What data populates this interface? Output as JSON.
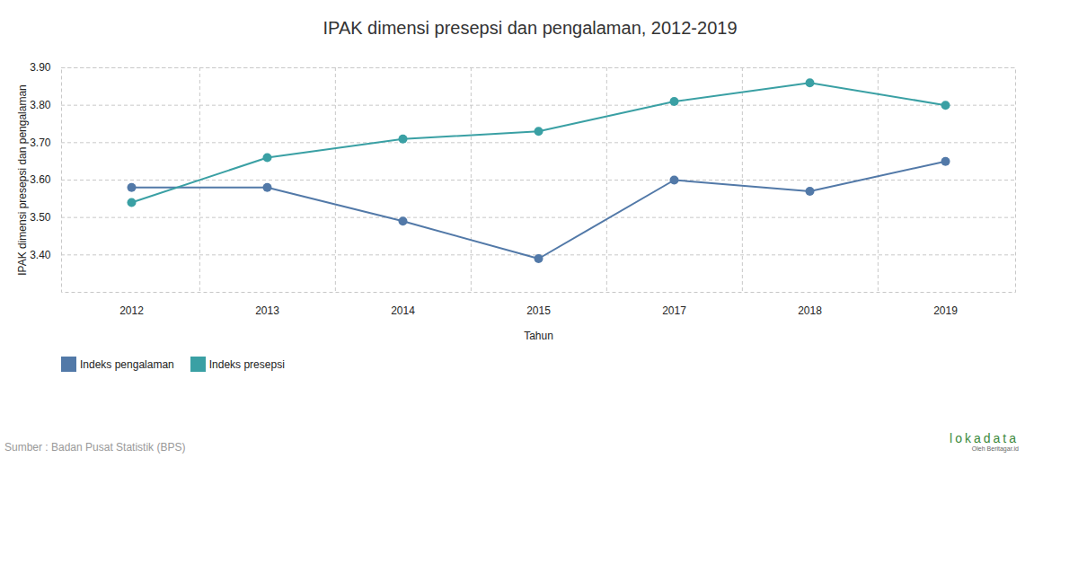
{
  "chart_data": {
    "type": "line",
    "title": "IPAK dimensi presepsi dan pengalaman, 2012-2019",
    "x_label": "Tahun",
    "y_label": "IPAK dimensi presepsi dan pengalaman",
    "categories": [
      "2012",
      "2013",
      "2014",
      "2015",
      "2017",
      "2018",
      "2019"
    ],
    "series": [
      {
        "name": "Indeks pengalaman",
        "color": "#5279a8",
        "marker": "circle",
        "values": [
          3.58,
          3.58,
          3.49,
          3.39,
          3.6,
          3.57,
          3.65
        ]
      },
      {
        "name": "Indeks presepsi",
        "color": "#3aa0a4",
        "marker": "circle",
        "values": [
          3.54,
          3.66,
          3.71,
          3.73,
          3.81,
          3.86,
          3.8
        ]
      }
    ],
    "ylim": [
      3.3,
      3.9
    ],
    "yticks": [
      3.4,
      3.5,
      3.6,
      3.7,
      3.8,
      3.9
    ],
    "grid": true,
    "legend": "bottom-left",
    "source": "Sumber : Badan Pusat Statistik (BPS)",
    "credit": [
      "lokadata",
      "Oleh Beritagar.id"
    ]
  }
}
